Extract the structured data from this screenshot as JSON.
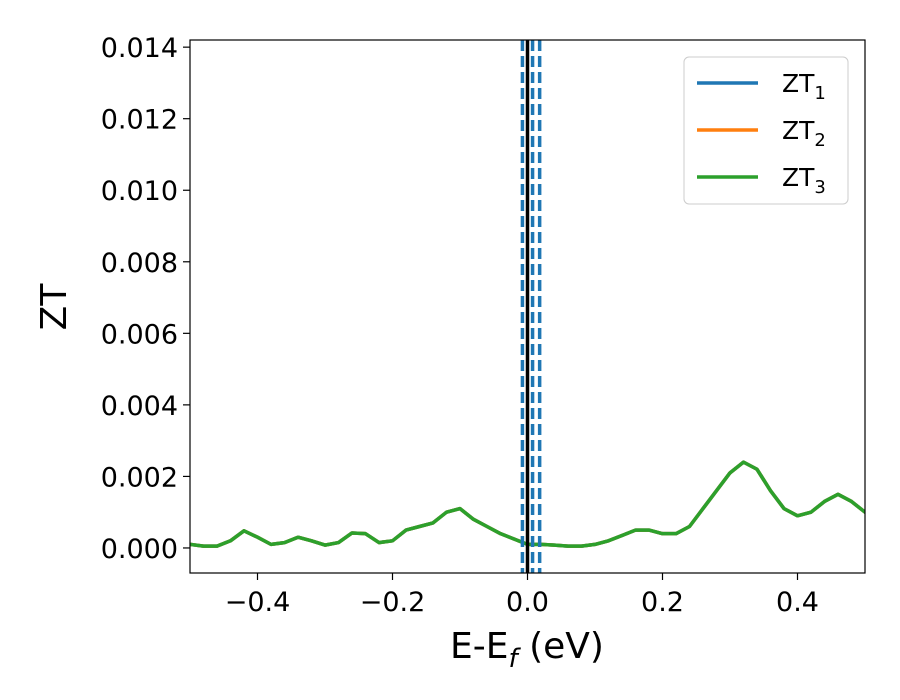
{
  "chart_data": {
    "type": "line",
    "title": "",
    "xlabel": {
      "main": "E-E",
      "sub": "f",
      "suffix": " (eV)"
    },
    "ylabel": "ZT",
    "xlim": [
      -0.5,
      0.5
    ],
    "ylim": [
      -0.0007,
      0.0142
    ],
    "xticks": [
      -0.4,
      -0.2,
      0.0,
      0.2,
      0.4
    ],
    "xtick_labels": [
      "−0.4",
      "−0.2",
      "0.0",
      "0.2",
      "0.4"
    ],
    "yticks": [
      0.0,
      0.002,
      0.004,
      0.006,
      0.008,
      0.01,
      0.012,
      0.014
    ],
    "ytick_labels": [
      "0.000",
      "0.002",
      "0.004",
      "0.006",
      "0.008",
      "0.010",
      "0.012",
      "0.014"
    ],
    "grid": false,
    "legend_position": "top-right",
    "series": [
      {
        "name": "ZT",
        "name_sub": "1",
        "color": "#1f77b4",
        "x": [
          -0.5,
          -0.48,
          -0.46,
          -0.44,
          -0.42,
          -0.4,
          -0.38,
          -0.36,
          -0.34,
          -0.32,
          -0.3,
          -0.28,
          -0.26,
          -0.24,
          -0.22,
          -0.2,
          -0.18,
          -0.16,
          -0.14,
          -0.12,
          -0.1,
          -0.08,
          -0.06,
          -0.04,
          -0.02,
          0.0,
          0.02,
          0.04,
          0.06,
          0.08,
          0.1,
          0.12,
          0.14,
          0.16,
          0.18,
          0.2,
          0.22,
          0.24,
          0.26,
          0.28,
          0.3,
          0.32,
          0.34,
          0.36,
          0.38,
          0.4,
          0.42,
          0.44,
          0.46,
          0.48,
          0.5
        ],
        "y": [
          0.0001,
          5e-05,
          5e-05,
          0.0002,
          0.00048,
          0.0003,
          0.0001,
          0.00015,
          0.0003,
          0.0002,
          8e-05,
          0.00015,
          0.00042,
          0.0004,
          0.00015,
          0.0002,
          0.0005,
          0.0006,
          0.0007,
          0.001,
          0.0011,
          0.0008,
          0.0006,
          0.0004,
          0.00025,
          0.0001,
          0.0001,
          8e-05,
          5e-05,
          5e-05,
          0.0001,
          0.0002,
          0.00035,
          0.0005,
          0.0005,
          0.0004,
          0.0004,
          0.0006,
          0.0011,
          0.0016,
          0.0021,
          0.0024,
          0.0022,
          0.0016,
          0.0011,
          0.0009,
          0.001,
          0.0013,
          0.0015,
          0.0013,
          0.001
        ]
      },
      {
        "name": "ZT",
        "name_sub": "2",
        "color": "#ff7f0e",
        "x": [
          -0.5,
          -0.48,
          -0.46,
          -0.44,
          -0.42,
          -0.4,
          -0.38,
          -0.36,
          -0.34,
          -0.32,
          -0.3,
          -0.28,
          -0.26,
          -0.24,
          -0.22,
          -0.2,
          -0.18,
          -0.16,
          -0.14,
          -0.12,
          -0.1,
          -0.08,
          -0.06,
          -0.04,
          -0.02,
          0.0,
          0.02,
          0.04,
          0.06,
          0.08,
          0.1,
          0.12,
          0.14,
          0.16,
          0.18,
          0.2,
          0.22,
          0.24,
          0.26,
          0.28,
          0.3,
          0.32,
          0.34,
          0.36,
          0.38,
          0.4,
          0.42,
          0.44,
          0.46,
          0.48,
          0.5
        ],
        "y": [
          0.0001,
          5e-05,
          5e-05,
          0.0002,
          0.00048,
          0.0003,
          0.0001,
          0.00015,
          0.0003,
          0.0002,
          8e-05,
          0.00015,
          0.00042,
          0.0004,
          0.00015,
          0.0002,
          0.0005,
          0.0006,
          0.0007,
          0.001,
          0.0011,
          0.0008,
          0.0006,
          0.0004,
          0.00025,
          0.0001,
          0.0001,
          8e-05,
          5e-05,
          5e-05,
          0.0001,
          0.0002,
          0.00035,
          0.0005,
          0.0005,
          0.0004,
          0.0004,
          0.0006,
          0.0011,
          0.0016,
          0.0021,
          0.0024,
          0.0022,
          0.0016,
          0.0011,
          0.0009,
          0.001,
          0.0013,
          0.0015,
          0.0013,
          0.001
        ]
      },
      {
        "name": "ZT",
        "name_sub": "3",
        "color": "#2ca02c",
        "x": [
          -0.5,
          -0.48,
          -0.46,
          -0.44,
          -0.42,
          -0.4,
          -0.38,
          -0.36,
          -0.34,
          -0.32,
          -0.3,
          -0.28,
          -0.26,
          -0.24,
          -0.22,
          -0.2,
          -0.18,
          -0.16,
          -0.14,
          -0.12,
          -0.1,
          -0.08,
          -0.06,
          -0.04,
          -0.02,
          0.0,
          0.02,
          0.04,
          0.06,
          0.08,
          0.1,
          0.12,
          0.14,
          0.16,
          0.18,
          0.2,
          0.22,
          0.24,
          0.26,
          0.28,
          0.3,
          0.32,
          0.34,
          0.36,
          0.38,
          0.4,
          0.42,
          0.44,
          0.46,
          0.48,
          0.5
        ],
        "y": [
          0.0001,
          5e-05,
          5e-05,
          0.0002,
          0.00048,
          0.0003,
          0.0001,
          0.00015,
          0.0003,
          0.0002,
          8e-05,
          0.00015,
          0.00042,
          0.0004,
          0.00015,
          0.0002,
          0.0005,
          0.0006,
          0.0007,
          0.001,
          0.0011,
          0.0008,
          0.0006,
          0.0004,
          0.00025,
          0.0001,
          0.0001,
          8e-05,
          5e-05,
          5e-05,
          0.0001,
          0.0002,
          0.00035,
          0.0005,
          0.0005,
          0.0004,
          0.0004,
          0.0006,
          0.0011,
          0.0016,
          0.0021,
          0.0024,
          0.0022,
          0.0016,
          0.0011,
          0.0009,
          0.001,
          0.0013,
          0.0015,
          0.0013,
          0.001
        ]
      }
    ],
    "vertical_lines": [
      {
        "x": -0.0075,
        "style": "dashed",
        "color": "#1f77b4"
      },
      {
        "x": 0.0075,
        "style": "dashed",
        "color": "#1f77b4"
      },
      {
        "x": 0.018,
        "style": "dashed",
        "color": "#1f77b4"
      },
      {
        "x": 0.0,
        "style": "solid",
        "color": "#000000"
      }
    ]
  }
}
